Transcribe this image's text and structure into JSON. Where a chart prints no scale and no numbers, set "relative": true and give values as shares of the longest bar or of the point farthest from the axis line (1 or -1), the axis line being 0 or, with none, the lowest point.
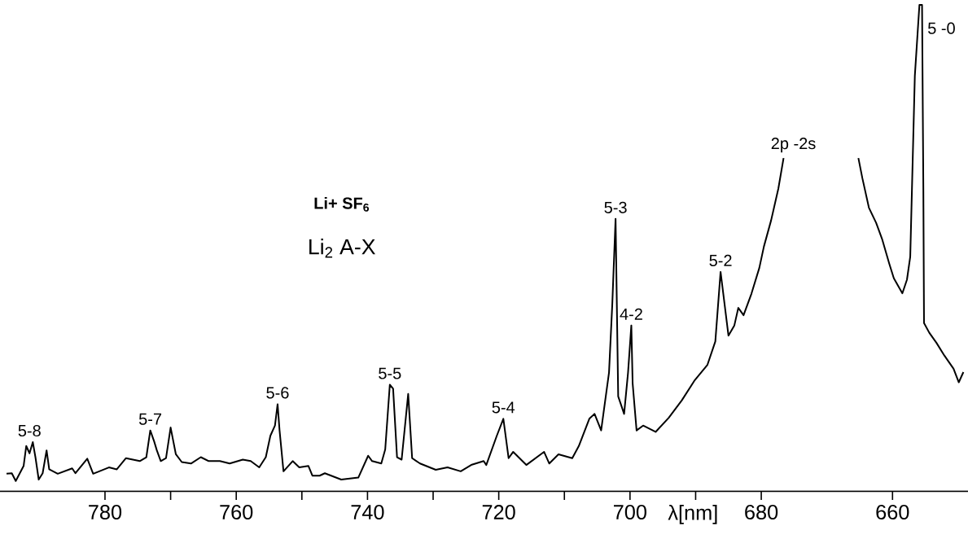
{
  "chart_data": {
    "type": "line",
    "relative": true,
    "xlabel": "λ[nm]",
    "xlim": [
      796,
      648.5
    ],
    "xticks": [
      780,
      {
        "value": 770,
        "label": null
      },
      760,
      {
        "value": 750,
        "label": null
      },
      740,
      {
        "value": 730,
        "label": null
      },
      720,
      {
        "value": 710,
        "label": null
      },
      700,
      {
        "value": 690,
        "label": null
      },
      680,
      660
    ],
    "x": [
      795.0,
      794.2,
      793.6,
      792.4,
      792.0,
      791.5,
      791.0,
      790.6,
      790.1,
      789.5,
      788.9,
      788.5,
      787.2,
      785.0,
      784.5,
      782.7,
      781.8,
      779.4,
      778.2,
      776.8,
      774.7,
      773.7,
      773.1,
      772.5,
      772.1,
      771.5,
      770.7,
      770.0,
      769.2,
      768.3,
      766.9,
      765.4,
      764.2,
      762.5,
      761.0,
      759.0,
      757.8,
      756.5,
      755.5,
      754.8,
      754.1,
      753.7,
      753.4,
      752.8,
      751.4,
      750.4,
      749.0,
      748.4,
      747.3,
      746.5,
      744.0,
      741.4,
      739.9,
      739.3,
      737.9,
      737.3,
      736.6,
      736.1,
      735.5,
      734.8,
      733.8,
      733.2,
      732.0,
      729.6,
      727.8,
      725.8,
      724.2,
      722.3,
      721.9,
      720.3,
      719.3,
      718.5,
      717.8,
      715.8,
      713.1,
      712.3,
      710.9,
      708.8,
      707.8,
      706.2,
      705.4,
      704.4,
      703.2,
      702.7,
      702.2,
      701.8,
      700.9,
      700.3,
      699.8,
      699.6,
      699.0,
      698.0,
      696.1,
      694.1,
      692.1,
      690.2,
      688.2,
      687.0,
      686.2,
      685.0,
      684.1,
      683.5,
      682.7,
      681.5,
      680.3,
      679.6,
      678.5,
      677.4,
      676.6,
      671.0,
      665.2,
      664.6,
      663.6,
      662.5,
      661.6,
      660.5,
      659.8,
      658.5,
      657.8,
      657.3,
      656.6,
      655.9,
      655.5,
      655.3,
      655.2,
      654.4,
      653.3,
      652.1,
      650.7,
      649.9,
      649.2
    ],
    "series": [
      {
        "color": "#000000",
        "values": [
          0.036,
          0.037,
          0.021,
          0.052,
          0.093,
          0.078,
          0.101,
          0.07,
          0.024,
          0.037,
          0.084,
          0.045,
          0.036,
          0.047,
          0.037,
          0.067,
          0.036,
          0.049,
          0.045,
          0.068,
          0.062,
          0.07,
          0.125,
          0.102,
          0.084,
          0.062,
          0.068,
          0.131,
          0.076,
          0.06,
          0.057,
          0.07,
          0.062,
          0.062,
          0.057,
          0.065,
          0.062,
          0.049,
          0.07,
          0.114,
          0.135,
          0.179,
          0.125,
          0.041,
          0.062,
          0.049,
          0.052,
          0.032,
          0.032,
          0.037,
          0.024,
          0.028,
          0.073,
          0.062,
          0.057,
          0.086,
          0.219,
          0.211,
          0.07,
          0.065,
          0.2,
          0.068,
          0.057,
          0.044,
          0.049,
          0.041,
          0.054,
          0.062,
          0.054,
          0.114,
          0.149,
          0.068,
          0.081,
          0.054,
          0.081,
          0.057,
          0.076,
          0.068,
          0.093,
          0.149,
          0.159,
          0.125,
          0.244,
          0.385,
          0.56,
          0.195,
          0.159,
          0.244,
          0.341,
          0.222,
          0.125,
          0.135,
          0.122,
          0.151,
          0.187,
          0.227,
          0.26,
          0.308,
          0.451,
          0.32,
          0.341,
          0.377,
          0.362,
          0.406,
          0.459,
          0.503,
          0.557,
          0.622,
          0.685,
          null,
          0.685,
          0.644,
          0.583,
          0.552,
          0.519,
          0.468,
          0.438,
          0.407,
          0.435,
          0.482,
          0.854,
          1,
          1,
          0.617,
          0.346,
          0.326,
          0.305,
          0.279,
          0.252,
          0.224,
          0.245
        ]
      }
    ],
    "annotations": [
      {
        "text": "5-8",
        "x": 791.5,
        "y": 0.101
      },
      {
        "text": "5-7",
        "x": 773.1,
        "y": 0.125
      },
      {
        "text": "5-6",
        "x": 753.7,
        "y": 0.179
      },
      {
        "text": "5-5",
        "x": 736.6,
        "y": 0.219
      },
      {
        "text": "5-4",
        "x": 719.3,
        "y": 0.149
      },
      {
        "text": "5-3",
        "x": 702.2,
        "y": 0.56
      },
      {
        "text": "4-2",
        "x": 699.8,
        "y": 0.341
      },
      {
        "text": "5-2",
        "x": 686.2,
        "y": 0.451
      },
      {
        "text": "2p -2s",
        "x": 676.6,
        "y": 0.685
      },
      {
        "text": "5 -0",
        "x": 655.7,
        "y": 1
      },
      "Li+ SF$_{6}$",
      "Li$_{2}$  A-X"
    ]
  }
}
